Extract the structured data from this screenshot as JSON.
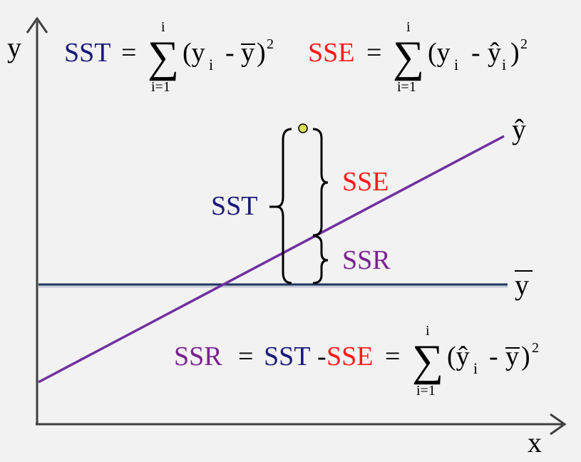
{
  "axes": {
    "y_label": "y",
    "x_label": "x"
  },
  "lines": {
    "yhat_label": "ŷ",
    "ybar_label": "y",
    "regression_color": "#7030a0",
    "mean_color": "#1f3864"
  },
  "formulas": {
    "sst": {
      "name": "SST",
      "eq": "=",
      "upper": "i",
      "lower": "i=1",
      "body_open": "(y",
      "sub": "i",
      "minus": "-",
      "term2": "y",
      "close": ")",
      "power": "2",
      "color": "#1a1a7a"
    },
    "sse": {
      "name": "SSE",
      "eq": "=",
      "upper": "i",
      "lower": "i=1",
      "body_open": "(y",
      "sub": "i",
      "minus": "-",
      "term2": "ŷ",
      "sub2": "i",
      "close": ")",
      "power": "2",
      "color": "#ff1a1a"
    },
    "ssr": {
      "name": "SSR",
      "eq1": "=",
      "part_sst": "SST",
      "dash": "-",
      "part_sse": "SSE",
      "eq2": "=",
      "upper": "i",
      "lower": "i=1",
      "body_open": "(ŷ",
      "sub": "i",
      "minus": "-",
      "term2": "y",
      "close": ")",
      "power": "2",
      "color": "#7a2290"
    }
  },
  "braces": {
    "sst_label": "SST",
    "sse_label": "SSE",
    "ssr_label": "SSR"
  },
  "point": {
    "fill": "#d9e05a"
  }
}
